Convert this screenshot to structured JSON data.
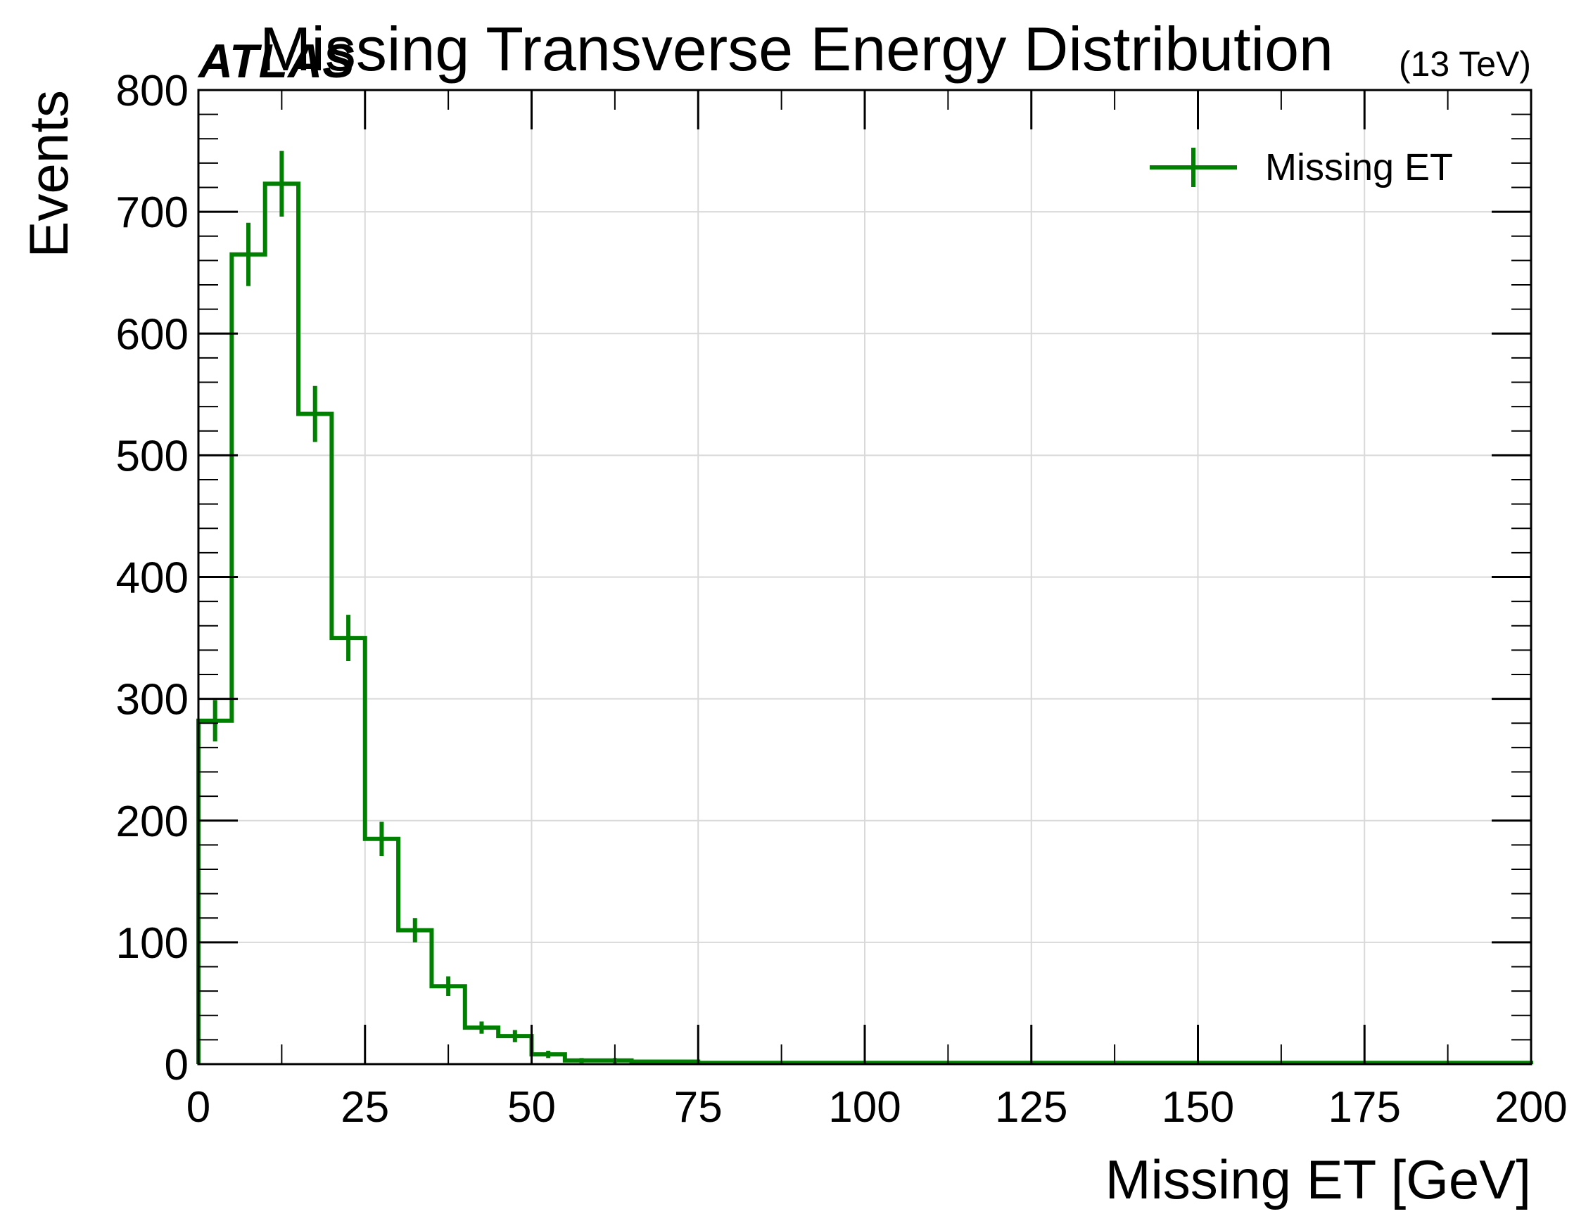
{
  "chart_data": {
    "type": "histogram",
    "title": "Missing Transverse Energy Distribution",
    "experiment_label": "ATLAS",
    "energy_label": "(13 TeV)",
    "xlabel": "Missing ET [GeV]",
    "ylabel": "Events",
    "xlim": [
      0,
      200
    ],
    "ylim": [
      0,
      800
    ],
    "x_ticks": [
      "0",
      "25",
      "50",
      "75",
      "100",
      "125",
      "150",
      "175",
      "200"
    ],
    "y_ticks": [
      "0",
      "100",
      "200",
      "300",
      "400",
      "500",
      "600",
      "700",
      "800"
    ],
    "grid": true,
    "legend_position": "top-right",
    "series": [
      {
        "name": "Missing ET",
        "color": "#008000",
        "bin_edges": [
          0,
          5,
          10,
          15,
          20,
          25,
          30,
          35,
          40,
          45,
          50,
          55,
          60,
          65,
          70,
          75,
          80,
          85,
          90,
          95,
          100,
          105,
          110,
          115,
          120,
          125,
          130,
          135,
          140,
          145,
          150,
          155,
          160,
          165,
          170,
          175,
          180,
          185,
          190,
          195,
          200
        ],
        "counts": [
          282,
          665,
          723,
          534,
          350,
          185,
          110,
          64,
          30,
          23,
          8,
          3,
          3,
          2,
          2,
          1,
          1,
          1,
          1,
          1,
          1,
          1,
          1,
          1,
          1,
          1,
          1,
          1,
          1,
          1,
          1,
          1,
          1,
          1,
          1,
          1,
          1,
          1,
          1,
          1
        ],
        "errors": [
          17,
          26,
          27,
          23,
          19,
          14,
          10,
          8,
          5,
          5,
          3,
          2,
          2,
          1,
          1,
          1,
          1,
          1,
          1,
          1,
          1,
          1,
          1,
          1,
          1,
          1,
          1,
          1,
          1,
          1,
          1,
          1,
          1,
          1,
          1,
          1,
          1,
          1,
          1,
          1
        ]
      }
    ]
  }
}
